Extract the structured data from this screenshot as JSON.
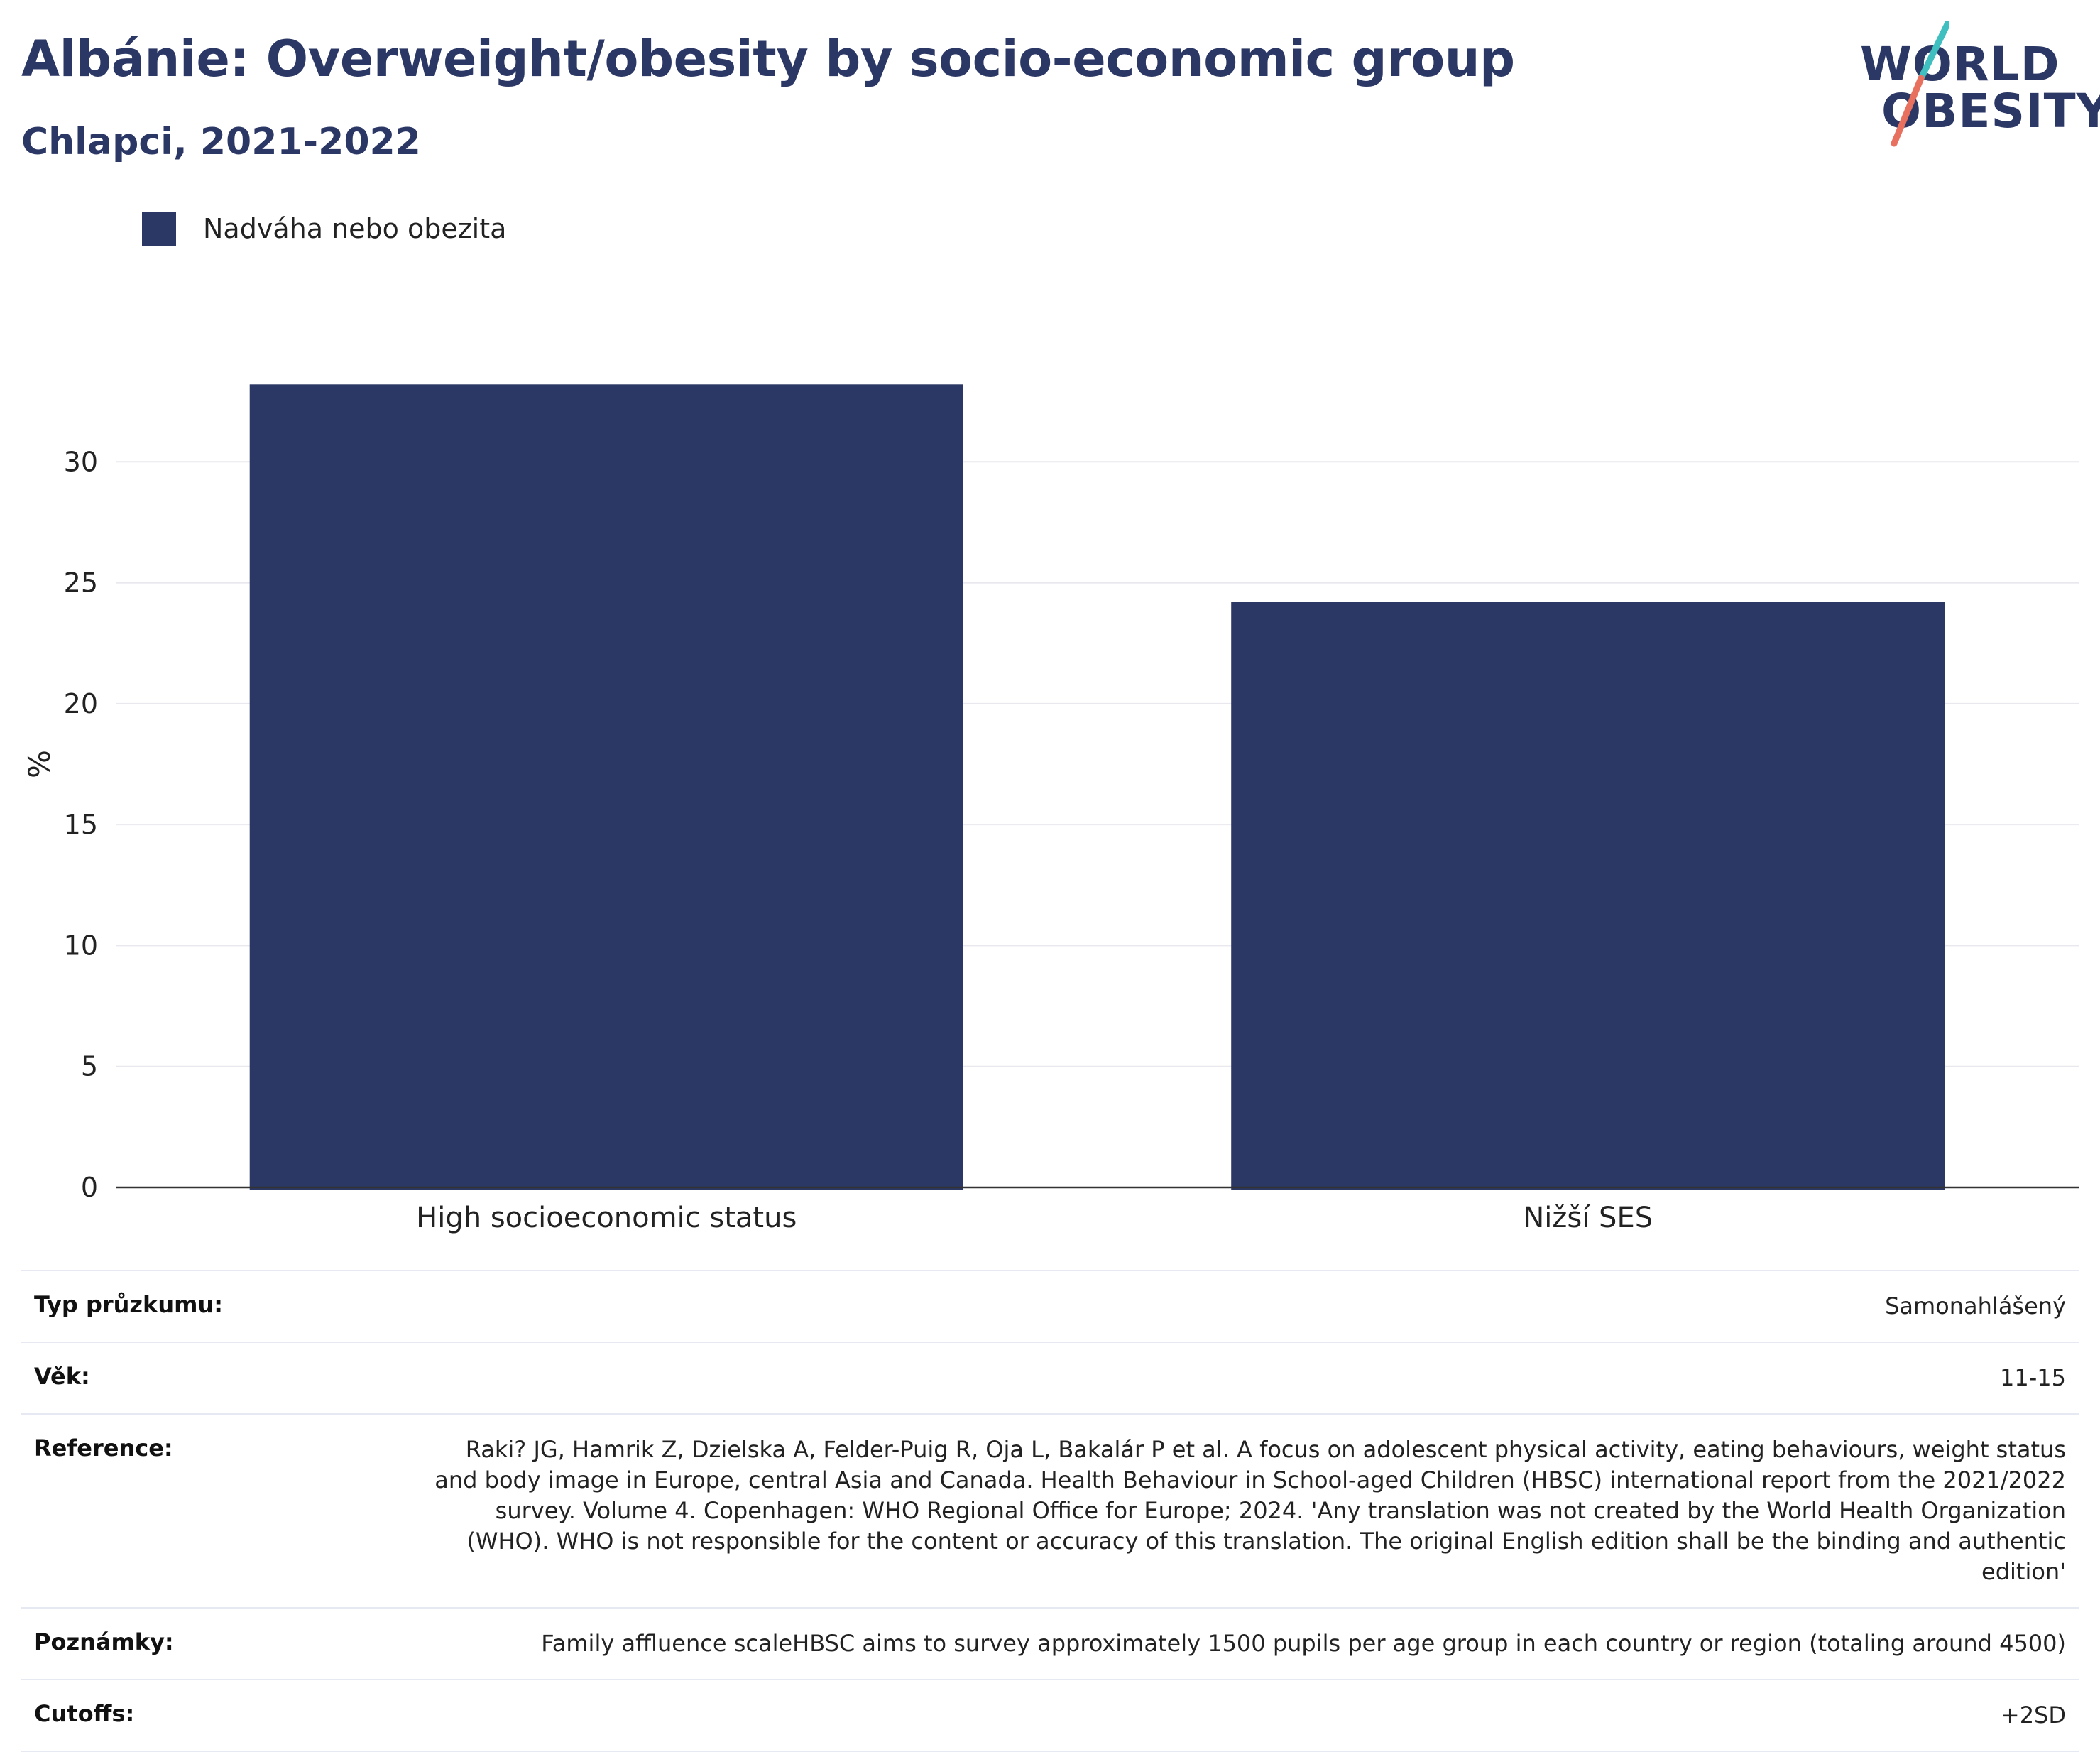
{
  "header": {
    "title": "Albánie: Overweight/obesity by socio-economic group",
    "subtitle": "Chlapci, 2021-2022"
  },
  "logo": {
    "line1": "WORLD",
    "line2": "OBESITY",
    "colors": {
      "text": "#2b3764",
      "slash_top": "#3fbfbf",
      "slash_bottom": "#e8705e"
    }
  },
  "legend": {
    "label": "Nadváha nebo obezita",
    "color": "#2b3764"
  },
  "chart_data": {
    "type": "bar",
    "categories": [
      "High socioeconomic status",
      "Nižší SES"
    ],
    "series": [
      {
        "name": "Nadváha nebo obezita",
        "values": [
          33.2,
          24.2
        ],
        "color": "#2b3764"
      }
    ],
    "ylabel": "%",
    "xlabel": "",
    "ylim": [
      0,
      35
    ],
    "yticks": [
      0,
      5,
      10,
      15,
      20,
      25,
      30
    ],
    "grid": true,
    "legend_position": "top-left"
  },
  "info": [
    {
      "key": "Typ průzkumu:",
      "value": "Samonahlášený"
    },
    {
      "key": "Věk:",
      "value": "11-15"
    },
    {
      "key": "Reference:",
      "value": "Raki? JG, Hamrik Z, Dzielska A, Felder-Puig R, Oja L, Bakalár P et al. A focus on adolescent physical activity, eating behaviours, weight status and body image in Europe, central Asia and Canada. Health Behaviour in School-aged Children (HBSC) international report from the 2021/2022 survey. Volume 4. Copenhagen: WHO Regional Office for Europe; 2024. 'Any translation was not created by the World Health Organization (WHO). WHO is not responsible for the content or accuracy of this translation. The original English edition shall be the binding and authentic edition'"
    },
    {
      "key": "Poznámky:",
      "value": "Family affluence scaleHBSC aims to survey approximately 1500 pupils per age group in each country or region (totaling around 4500)"
    },
    {
      "key": "Cutoffs:",
      "value": "+2SD"
    }
  ]
}
